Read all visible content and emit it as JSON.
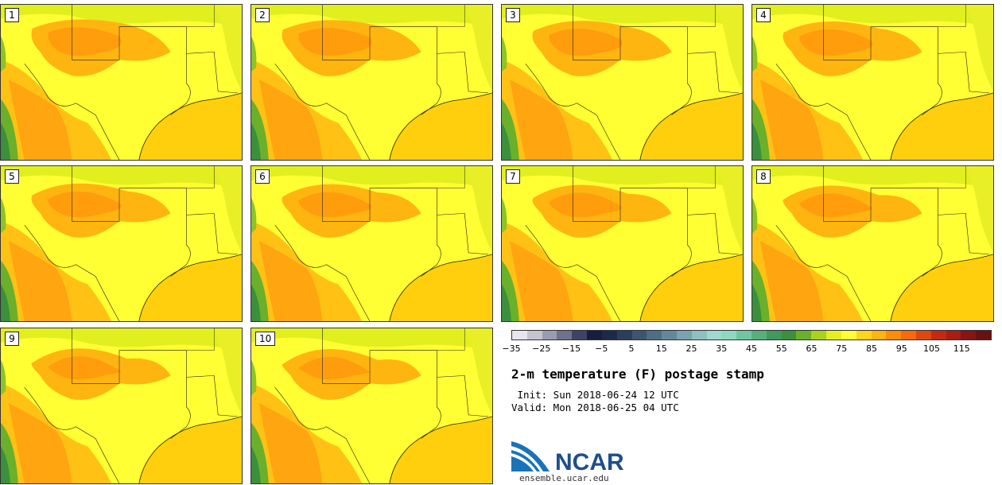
{
  "panels": [
    "1",
    "2",
    "3",
    "4",
    "5",
    "6",
    "7",
    "8",
    "9",
    "10"
  ],
  "colorbar": {
    "colors": [
      "#e6e6ee",
      "#c4c4d0",
      "#9b9cae",
      "#6f728c",
      "#3f4467",
      "#161d3d",
      "#1c2a4a",
      "#2b3f5c",
      "#3d5670",
      "#4f6e85",
      "#64889a",
      "#7aa3ad",
      "#8fbfbe",
      "#a0d8cf",
      "#8fd8c0",
      "#70c6a0",
      "#55b07c",
      "#419a5d",
      "#3c8f3c",
      "#6ab02a",
      "#a8d21c",
      "#e5ef1e",
      "#ffff33",
      "#ffd51a",
      "#ffb510",
      "#ff8d0a",
      "#f56a0c",
      "#de480f",
      "#c42a12",
      "#a81d14",
      "#861515",
      "#6b1012"
    ],
    "ticks": [
      "−35",
      "−25",
      "−15",
      "−5",
      "5",
      "15",
      "25",
      "35",
      "45",
      "55",
      "65",
      "75",
      "85",
      "95",
      "105",
      "115"
    ]
  },
  "title": "2-m temperature (F) postage stamp",
  "init_line": " Init: Sun 2018-06-24 12 UTC",
  "valid_line": "Valid: Mon 2018-06-25 04 UTC",
  "logo_text": "NCAR",
  "site": "ensemble.ucar.edu"
}
